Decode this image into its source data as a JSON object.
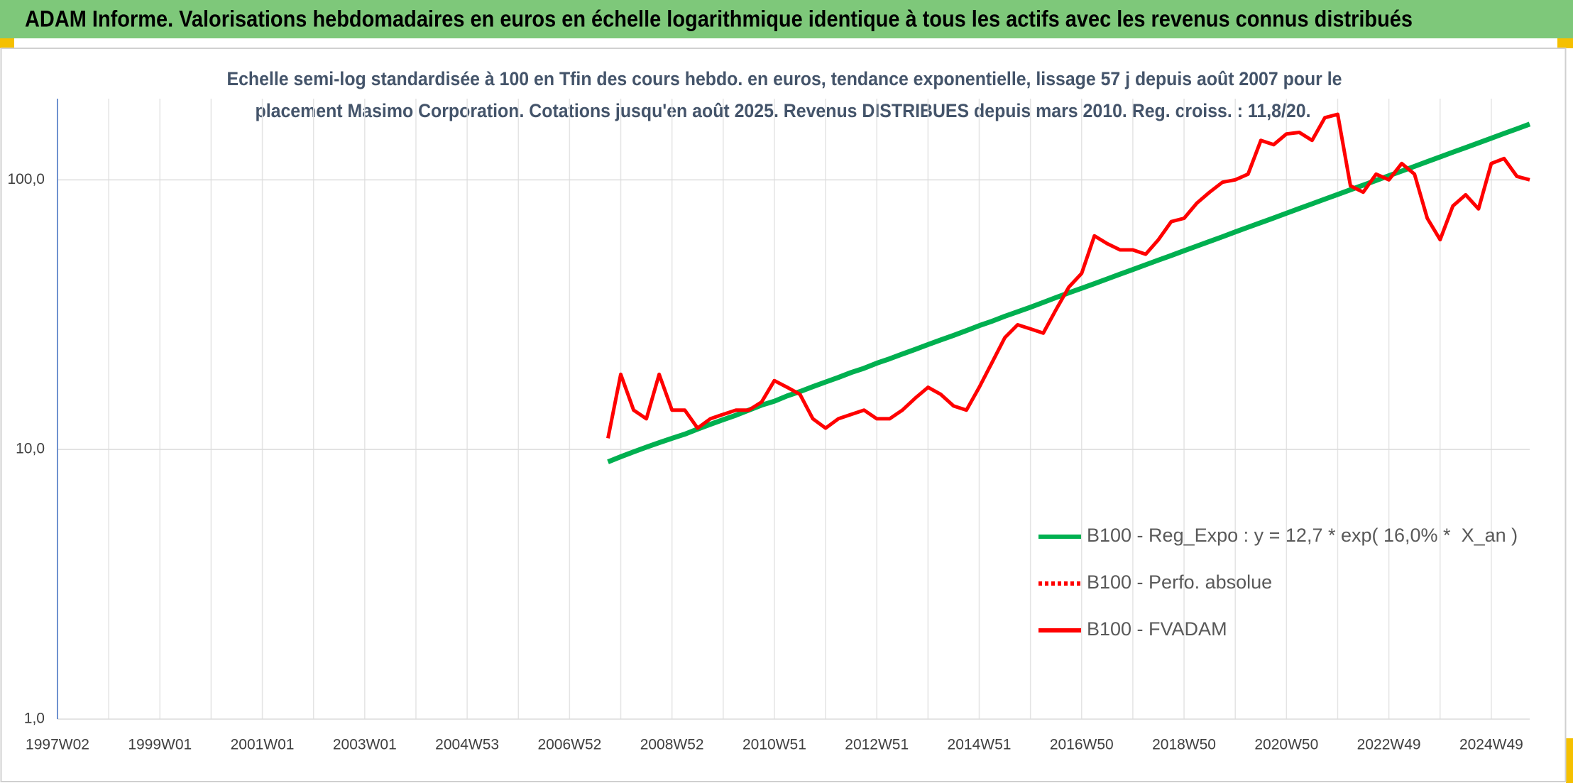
{
  "chart_data": {
    "type": "line",
    "title": "ADAM Informe. Valorisations hebdomadaires en euros en échelle logarithmique identique à tous les actifs avec les revenus connus distribués",
    "subtitle": [
      "Echelle semi-log standardisée à 100 en Tfin des cours hebdo. en euros, tendance exponentielle, lissage 57 j depuis août 2007 pour le",
      "placement Masimo Corporation. Cotations jusqu'en août 2025. Revenus DISTRIBUES depuis mars 2010. Reg. croiss. : 11,8/20."
    ],
    "categories": [
      "1997W02",
      null,
      null,
      null,
      null,
      null,
      null,
      null,
      "1999W01",
      null,
      null,
      null,
      null,
      null,
      null,
      null,
      "2001W01",
      null,
      null,
      null,
      null,
      null,
      null,
      null,
      "2003W01",
      null,
      null,
      null,
      null,
      null,
      null,
      null,
      "2004W53",
      null,
      null,
      null,
      null,
      null,
      null,
      null,
      "2006W52",
      null,
      null,
      null,
      null,
      null,
      null,
      null,
      "2008W52",
      null,
      null,
      null,
      null,
      null,
      null,
      null,
      "2010W51",
      null,
      null,
      null,
      null,
      null,
      null,
      null,
      "2012W51",
      null,
      null,
      null,
      null,
      null,
      null,
      null,
      "2014W51",
      null,
      null,
      null,
      null,
      null,
      null,
      null,
      "2016W50",
      null,
      null,
      null,
      null,
      null,
      null,
      null,
      "2018W50",
      null,
      null,
      null,
      null,
      null,
      null,
      null,
      "2020W50",
      null,
      null,
      null,
      null,
      null,
      null,
      null,
      "2022W49",
      null,
      null,
      null,
      null,
      null,
      null,
      null,
      "2024W49",
      null,
      null,
      null
    ],
    "series": [
      {
        "name": "B100 - Reg_Expo : y = 12,7 * exp( 16,0% *  X_an )",
        "color": "#00b050",
        "line_style": "solid",
        "values": [
          null,
          null,
          null,
          null,
          null,
          null,
          null,
          null,
          null,
          null,
          null,
          null,
          null,
          null,
          null,
          null,
          null,
          null,
          null,
          null,
          null,
          null,
          null,
          null,
          null,
          null,
          null,
          null,
          null,
          null,
          null,
          null,
          null,
          null,
          null,
          null,
          null,
          null,
          null,
          null,
          null,
          null,
          null,
          9.0,
          9.4,
          9.8,
          10.2,
          10.6,
          11.0,
          11.4,
          11.9,
          12.4,
          12.9,
          13.4,
          14.0,
          14.6,
          15.1,
          15.8,
          16.4,
          17.1,
          17.8,
          18.5,
          19.3,
          20.0,
          20.9,
          21.7,
          22.6,
          23.5,
          24.5,
          25.5,
          26.5,
          27.6,
          28.8,
          29.9,
          31.2,
          32.4,
          33.7,
          35.1,
          36.6,
          38.1,
          39.6,
          41.2,
          42.9,
          44.7,
          46.5,
          48.4,
          50.4,
          52.4,
          54.6,
          56.8,
          59.1,
          61.5,
          64.1,
          66.7,
          69.4,
          72.2,
          75.2,
          78.3,
          81.5,
          84.8,
          88.3,
          91.9,
          95.6,
          99.5,
          103.6,
          107.8,
          112.2,
          116.8,
          121.6,
          126.6,
          131.7,
          137.1,
          142.7,
          148.6,
          154.6,
          161.0
        ]
      },
      {
        "name": "B100 - Perfo. absolue",
        "color": "#ff0000",
        "line_style": "dotted",
        "values": [
          null,
          null,
          null,
          null,
          null,
          null,
          null,
          null,
          null,
          null,
          null,
          null,
          null,
          null,
          null,
          null,
          null,
          null,
          null,
          null,
          null,
          null,
          null,
          null,
          null,
          null,
          null,
          null,
          null,
          null,
          null,
          null,
          null,
          null,
          null,
          null,
          null,
          null,
          null,
          null,
          null,
          null,
          null,
          null,
          null,
          null,
          null,
          null,
          null,
          null,
          null,
          null,
          null,
          null,
          null,
          null,
          null,
          null,
          null,
          null,
          null,
          null,
          null,
          null,
          null,
          null,
          null,
          null,
          null,
          null,
          null,
          null,
          null,
          null,
          null,
          null,
          null,
          null,
          null,
          null,
          null,
          null,
          null,
          null,
          null,
          null,
          null,
          null,
          null,
          null,
          null,
          null,
          null,
          null,
          null,
          null,
          null,
          null,
          null,
          null,
          null,
          null,
          null,
          null,
          null,
          null,
          null,
          null,
          null,
          null,
          null,
          null,
          null,
          null,
          null,
          null
        ]
      },
      {
        "name": "B100 - FVADAM",
        "color": "#ff0000",
        "line_style": "solid",
        "values": [
          null,
          null,
          null,
          null,
          null,
          null,
          null,
          null,
          null,
          null,
          null,
          null,
          null,
          null,
          null,
          null,
          null,
          null,
          null,
          null,
          null,
          null,
          null,
          null,
          null,
          null,
          null,
          null,
          null,
          null,
          null,
          null,
          null,
          null,
          null,
          null,
          null,
          null,
          null,
          null,
          null,
          null,
          null,
          11,
          19,
          14,
          13,
          19,
          14,
          14,
          12,
          13,
          13.5,
          14,
          14,
          15,
          18,
          17,
          16,
          13,
          12,
          13,
          13.5,
          14,
          13,
          13,
          14,
          15.5,
          17,
          16,
          14.5,
          14,
          17,
          21,
          26,
          29,
          28,
          27,
          33,
          40,
          45,
          62,
          58,
          55,
          55,
          53,
          60,
          70,
          72,
          82,
          90,
          98,
          100,
          105,
          140,
          135,
          148,
          150,
          140,
          170,
          175,
          95,
          90,
          105,
          100,
          115,
          105,
          72,
          60,
          80,
          88,
          78,
          115,
          120,
          103,
          100
        ]
      }
    ],
    "log_scale": true,
    "ylim": [
      1,
      200
    ],
    "yticks": [
      {
        "value": 1,
        "label": "1,0"
      },
      {
        "value": 10,
        "label": "10,0"
      },
      {
        "value": 100,
        "label": "100,0"
      }
    ],
    "grid": true,
    "legend": "right"
  }
}
